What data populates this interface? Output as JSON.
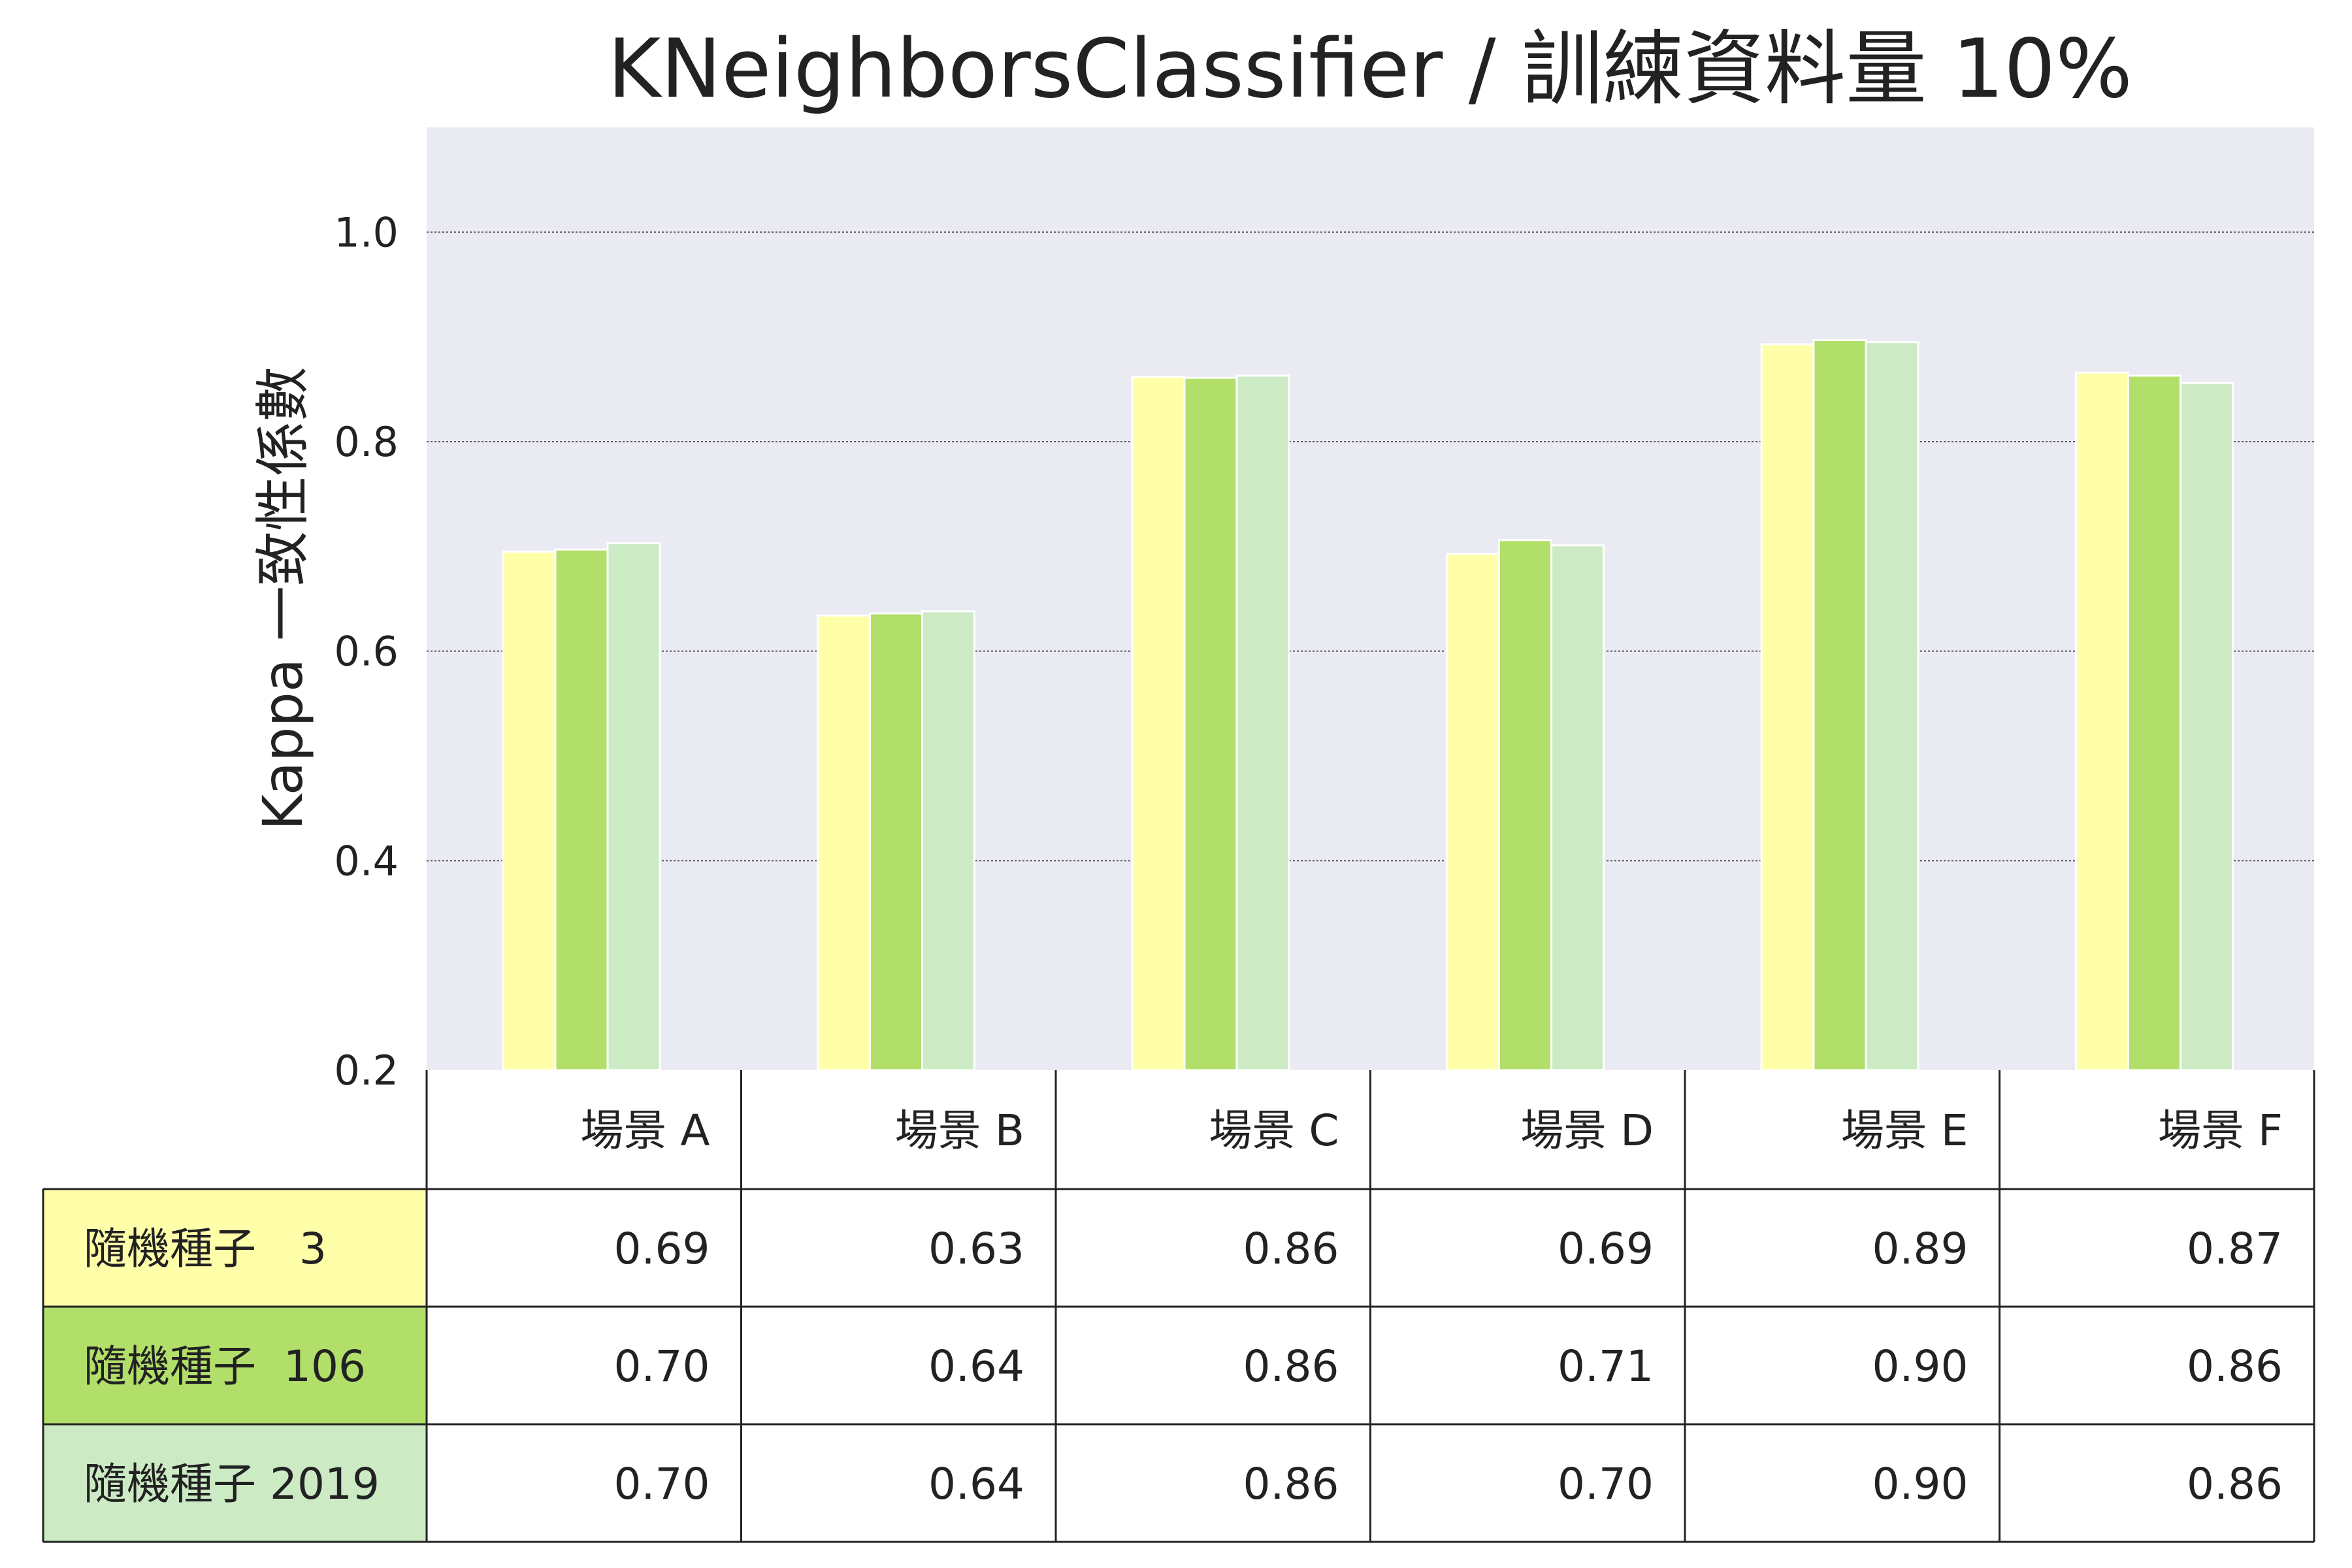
{
  "chart_data": {
    "type": "bar",
    "title": "KNeighborsClassifier / 訓練資料量 10%",
    "ylabel": "Kappa 一致性係數",
    "xlabel": "",
    "ylim": [
      0.2,
      1.1
    ],
    "yticks": [
      0.2,
      0.4,
      0.6,
      0.8,
      1.0
    ],
    "ytick_labels": [
      "0.2",
      "0.4",
      "0.6",
      "0.8",
      "1.0"
    ],
    "grid": true,
    "categories": [
      "場景 A",
      "場景 B",
      "場景 C",
      "場景 D",
      "場景 E",
      "場景 F"
    ],
    "series": [
      {
        "name": "隨機種子　3",
        "color": "#FFFFAA",
        "values": [
          0.695,
          0.634,
          0.862,
          0.693,
          0.893,
          0.866
        ],
        "labels": [
          "0.69",
          "0.63",
          "0.86",
          "0.69",
          "0.89",
          "0.87"
        ]
      },
      {
        "name": "隨機種子  106",
        "color": "#B2DE6A",
        "values": [
          0.697,
          0.636,
          0.861,
          0.706,
          0.897,
          0.863
        ],
        "labels": [
          "0.70",
          "0.64",
          "0.86",
          "0.71",
          "0.90",
          "0.86"
        ]
      },
      {
        "name": "隨機種子 2019",
        "color": "#CCEBC5",
        "values": [
          0.703,
          0.638,
          0.863,
          0.701,
          0.895,
          0.856
        ],
        "labels": [
          "0.70",
          "0.64",
          "0.86",
          "0.70",
          "0.90",
          "0.86"
        ]
      }
    ],
    "plot_background": "#EAEAF2"
  }
}
